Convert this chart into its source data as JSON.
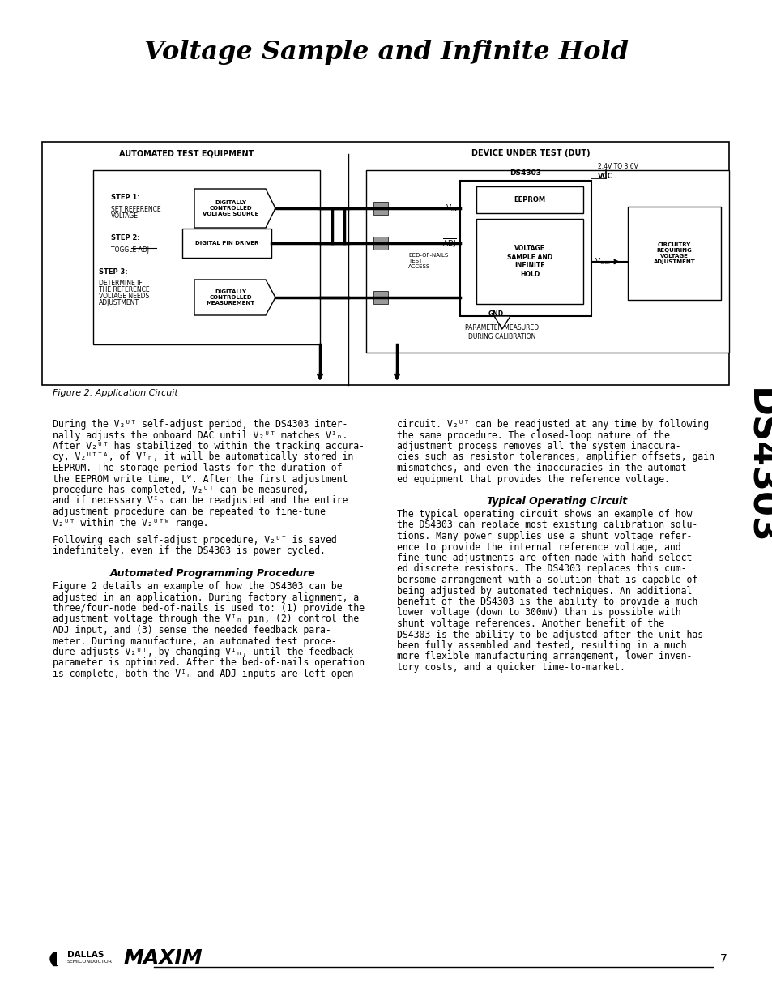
{
  "title": "Voltage Sample and Infinite Hold",
  "page_number": "7",
  "background_color": "#ffffff",
  "figure_caption": "Figure 2. Application Circuit",
  "side_label": "DS4303",
  "header_left": "AUTOMATED TEST EQUIPMENT",
  "header_right": "DEVICE UNDER TEST (DUT)",
  "step1_label": "STEP 1:",
  "step1_desc": "SET REFERENCE\nVOLTAGE",
  "step1_box": "DIGITALLY\nCONTROLLED\nVOLTAGE SOURCE",
  "step2_label": "STEP 2:",
  "step2_desc": "TOGGLE ADJ",
  "step2_box": "DIGITAL PIN DRIVER",
  "step3_label": "STEP 3:",
  "step3_desc": "DETERMINE IF\nTHE REFERENCE\nVOLTAGE NEEDS\nADJUSTMENT",
  "step3_box": "DIGITALLY\nCONTROLLED\nMEASUREMENT",
  "ds4303_label": "DS4303",
  "vcc_label": "2.4V TO 3.6V",
  "vcc_pin": "VCC",
  "eeprom_label": "EEPROM",
  "core_label": "VOLTAGE\nSAMPLE AND\nINFINITE\nHOLD",
  "vin_label": "VIN",
  "adj_label": "ADJ",
  "gnd_label": "GND",
  "vout_label": "VOUT",
  "bod_label": "BED-OF-NAILS\nTEST\nACCESS",
  "param_label": "PARAMETER MEASURED\nDURING CALIBRATION",
  "circ_label": "CIRCUITRY\nREQUIRING\nVOLTAGE\nADJUSTMENT",
  "para_intro": "During the VOUT self-adjust period, the DS4303 internally adjusts the onboard DAC until VOUT matches VIN. After VOUT has stabilized to within the tracking accuracy, VOUTTA, of VIN, it will be automatically stored in EEPROM. The storage period lasts for the duration of the EEPROM write time, tW. After the first adjustment procedure has completed, VOUT can be measured, and if necessary VIN can be readjusted and the entire adjustment procedure can be repeated to fine-tune VOUT within the VOUTQ range.",
  "para_follow": "Following each self-adjust procedure, VOUT is saved indefinitely, even if the DS4303 is power cycled.",
  "para1_title": "Automated Programming Procedure",
  "para2_title": "Typical Operating Circuit"
}
